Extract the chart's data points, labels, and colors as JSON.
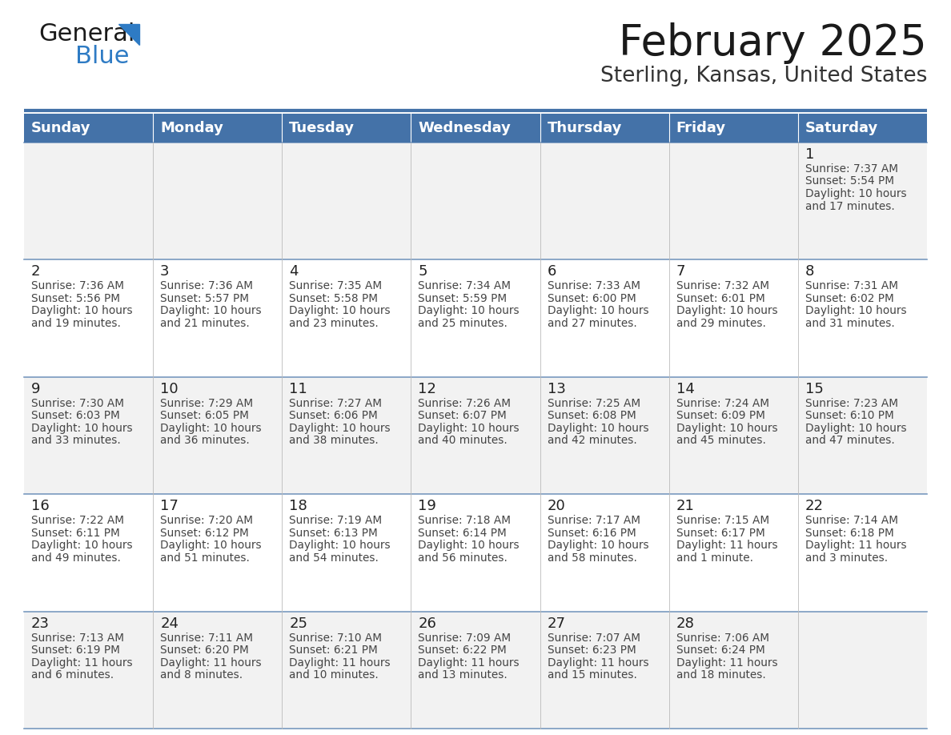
{
  "title": "February 2025",
  "subtitle": "Sterling, Kansas, United States",
  "days_of_week": [
    "Sunday",
    "Monday",
    "Tuesday",
    "Wednesday",
    "Thursday",
    "Friday",
    "Saturday"
  ],
  "header_bg": "#4472A8",
  "header_text_color": "#FFFFFF",
  "cell_bg_even": "#F2F2F2",
  "cell_bg_odd": "#FFFFFF",
  "line_color": "#4472A8",
  "title_color": "#1A1A1A",
  "subtitle_color": "#333333",
  "day_num_color": "#222222",
  "info_color": "#444444",
  "logo_black": "#1A1A1A",
  "logo_blue": "#2E7BC4",
  "logo_triangle": "#2E7BC4",
  "calendar_data": [
    [
      null,
      null,
      null,
      null,
      null,
      null,
      {
        "day": 1,
        "sunrise": "7:37 AM",
        "sunset": "5:54 PM",
        "daylight": "10 hours and 17 minutes"
      }
    ],
    [
      {
        "day": 2,
        "sunrise": "7:36 AM",
        "sunset": "5:56 PM",
        "daylight": "10 hours and 19 minutes"
      },
      {
        "day": 3,
        "sunrise": "7:36 AM",
        "sunset": "5:57 PM",
        "daylight": "10 hours and 21 minutes"
      },
      {
        "day": 4,
        "sunrise": "7:35 AM",
        "sunset": "5:58 PM",
        "daylight": "10 hours and 23 minutes"
      },
      {
        "day": 5,
        "sunrise": "7:34 AM",
        "sunset": "5:59 PM",
        "daylight": "10 hours and 25 minutes"
      },
      {
        "day": 6,
        "sunrise": "7:33 AM",
        "sunset": "6:00 PM",
        "daylight": "10 hours and 27 minutes"
      },
      {
        "day": 7,
        "sunrise": "7:32 AM",
        "sunset": "6:01 PM",
        "daylight": "10 hours and 29 minutes"
      },
      {
        "day": 8,
        "sunrise": "7:31 AM",
        "sunset": "6:02 PM",
        "daylight": "10 hours and 31 minutes"
      }
    ],
    [
      {
        "day": 9,
        "sunrise": "7:30 AM",
        "sunset": "6:03 PM",
        "daylight": "10 hours and 33 minutes"
      },
      {
        "day": 10,
        "sunrise": "7:29 AM",
        "sunset": "6:05 PM",
        "daylight": "10 hours and 36 minutes"
      },
      {
        "day": 11,
        "sunrise": "7:27 AM",
        "sunset": "6:06 PM",
        "daylight": "10 hours and 38 minutes"
      },
      {
        "day": 12,
        "sunrise": "7:26 AM",
        "sunset": "6:07 PM",
        "daylight": "10 hours and 40 minutes"
      },
      {
        "day": 13,
        "sunrise": "7:25 AM",
        "sunset": "6:08 PM",
        "daylight": "10 hours and 42 minutes"
      },
      {
        "day": 14,
        "sunrise": "7:24 AM",
        "sunset": "6:09 PM",
        "daylight": "10 hours and 45 minutes"
      },
      {
        "day": 15,
        "sunrise": "7:23 AM",
        "sunset": "6:10 PM",
        "daylight": "10 hours and 47 minutes"
      }
    ],
    [
      {
        "day": 16,
        "sunrise": "7:22 AM",
        "sunset": "6:11 PM",
        "daylight": "10 hours and 49 minutes"
      },
      {
        "day": 17,
        "sunrise": "7:20 AM",
        "sunset": "6:12 PM",
        "daylight": "10 hours and 51 minutes"
      },
      {
        "day": 18,
        "sunrise": "7:19 AM",
        "sunset": "6:13 PM",
        "daylight": "10 hours and 54 minutes"
      },
      {
        "day": 19,
        "sunrise": "7:18 AM",
        "sunset": "6:14 PM",
        "daylight": "10 hours and 56 minutes"
      },
      {
        "day": 20,
        "sunrise": "7:17 AM",
        "sunset": "6:16 PM",
        "daylight": "10 hours and 58 minutes"
      },
      {
        "day": 21,
        "sunrise": "7:15 AM",
        "sunset": "6:17 PM",
        "daylight": "11 hours and 1 minute"
      },
      {
        "day": 22,
        "sunrise": "7:14 AM",
        "sunset": "6:18 PM",
        "daylight": "11 hours and 3 minutes"
      }
    ],
    [
      {
        "day": 23,
        "sunrise": "7:13 AM",
        "sunset": "6:19 PM",
        "daylight": "11 hours and 6 minutes"
      },
      {
        "day": 24,
        "sunrise": "7:11 AM",
        "sunset": "6:20 PM",
        "daylight": "11 hours and 8 minutes"
      },
      {
        "day": 25,
        "sunrise": "7:10 AM",
        "sunset": "6:21 PM",
        "daylight": "11 hours and 10 minutes"
      },
      {
        "day": 26,
        "sunrise": "7:09 AM",
        "sunset": "6:22 PM",
        "daylight": "11 hours and 13 minutes"
      },
      {
        "day": 27,
        "sunrise": "7:07 AM",
        "sunset": "6:23 PM",
        "daylight": "11 hours and 15 minutes"
      },
      {
        "day": 28,
        "sunrise": "7:06 AM",
        "sunset": "6:24 PM",
        "daylight": "11 hours and 18 minutes"
      },
      null
    ]
  ],
  "figsize": [
    11.88,
    9.18
  ],
  "dpi": 100
}
